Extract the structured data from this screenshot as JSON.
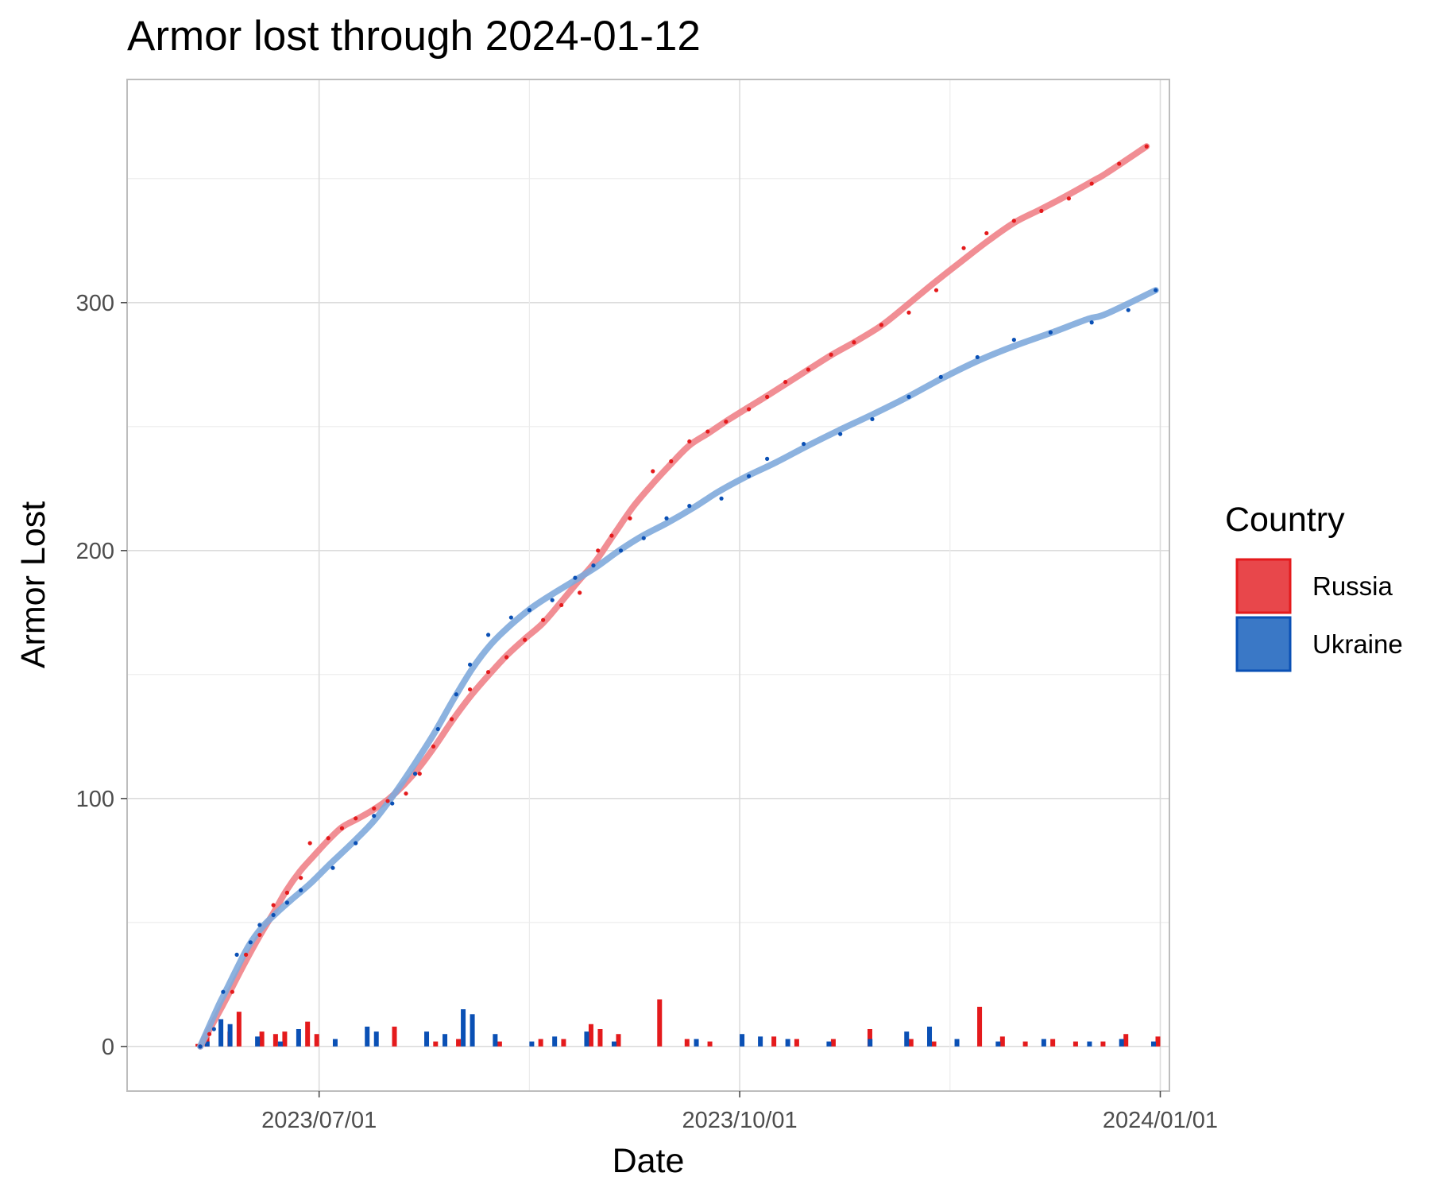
{
  "chart_data": {
    "type": "line",
    "title": "Armor lost through 2024-01-12",
    "xlabel": "Date",
    "ylabel": "Armor Lost",
    "x_ticks": [
      "2023/07/01",
      "2023/10/01",
      "2024/01/01"
    ],
    "y_ticks": [
      0,
      100,
      200,
      300
    ],
    "ylim": [
      -18,
      390
    ],
    "xlim": [
      "2023-05-20",
      "2024-01-03"
    ],
    "grid": true,
    "legend": {
      "title": "Country",
      "position": "right",
      "entries": [
        {
          "label": "Russia",
          "color": "#e41a1c"
        },
        {
          "label": "Ukraine",
          "color": "#0a50b5"
        }
      ]
    },
    "series": [
      {
        "name": "Russia",
        "color": "#e41a1c",
        "fill": "#e8474b",
        "trend_color": "#ef8288",
        "cumulative": [
          [
            "2023-06-05",
            0
          ],
          [
            "2023-06-07",
            5
          ],
          [
            "2023-06-12",
            22
          ],
          [
            "2023-06-15",
            37
          ],
          [
            "2023-06-18",
            45
          ],
          [
            "2023-06-21",
            57
          ],
          [
            "2023-06-24",
            62
          ],
          [
            "2023-06-27",
            68
          ],
          [
            "2023-06-29",
            82
          ],
          [
            "2023-07-03",
            84
          ],
          [
            "2023-07-06",
            88
          ],
          [
            "2023-07-09",
            92
          ],
          [
            "2023-07-13",
            96
          ],
          [
            "2023-07-16",
            99
          ],
          [
            "2023-07-20",
            102
          ],
          [
            "2023-07-23",
            110
          ],
          [
            "2023-07-26",
            121
          ],
          [
            "2023-07-30",
            132
          ],
          [
            "2023-08-03",
            144
          ],
          [
            "2023-08-07",
            151
          ],
          [
            "2023-08-11",
            157
          ],
          [
            "2023-08-15",
            164
          ],
          [
            "2023-08-19",
            172
          ],
          [
            "2023-08-23",
            178
          ],
          [
            "2023-08-27",
            183
          ],
          [
            "2023-08-31",
            200
          ],
          [
            "2023-09-03",
            206
          ],
          [
            "2023-09-07",
            213
          ],
          [
            "2023-09-12",
            232
          ],
          [
            "2023-09-16",
            236
          ],
          [
            "2023-09-20",
            244
          ],
          [
            "2023-09-24",
            248
          ],
          [
            "2023-09-28",
            252
          ],
          [
            "2023-10-03",
            257
          ],
          [
            "2023-10-07",
            262
          ],
          [
            "2023-10-11",
            268
          ],
          [
            "2023-10-16",
            273
          ],
          [
            "2023-10-21",
            279
          ],
          [
            "2023-10-26",
            284
          ],
          [
            "2023-11-01",
            291
          ],
          [
            "2023-11-07",
            296
          ],
          [
            "2023-11-13",
            305
          ],
          [
            "2023-11-19",
            322
          ],
          [
            "2023-11-24",
            328
          ],
          [
            "2023-11-30",
            333
          ],
          [
            "2023-12-06",
            337
          ],
          [
            "2023-12-12",
            342
          ],
          [
            "2023-12-17",
            348
          ],
          [
            "2023-12-23",
            356
          ],
          [
            "2023-12-29",
            363
          ]
        ],
        "daily": [
          [
            "2023-06-05",
            1
          ],
          [
            "2023-06-07",
            4
          ],
          [
            "2023-06-12",
            6
          ],
          [
            "2023-06-14",
            14
          ],
          [
            "2023-06-19",
            6
          ],
          [
            "2023-06-22",
            5
          ],
          [
            "2023-06-24",
            6
          ],
          [
            "2023-06-29",
            10
          ],
          [
            "2023-07-01",
            5
          ],
          [
            "2023-07-18",
            8
          ],
          [
            "2023-07-27",
            2
          ],
          [
            "2023-08-01",
            3
          ],
          [
            "2023-08-10",
            2
          ],
          [
            "2023-08-19",
            3
          ],
          [
            "2023-08-24",
            3
          ],
          [
            "2023-08-30",
            9
          ],
          [
            "2023-09-01",
            7
          ],
          [
            "2023-09-05",
            5
          ],
          [
            "2023-09-14",
            19
          ],
          [
            "2023-09-20",
            3
          ],
          [
            "2023-09-25",
            2
          ],
          [
            "2023-10-09",
            4
          ],
          [
            "2023-10-14",
            3
          ],
          [
            "2023-10-22",
            3
          ],
          [
            "2023-10-30",
            7
          ],
          [
            "2023-11-08",
            3
          ],
          [
            "2023-11-13",
            2
          ],
          [
            "2023-11-23",
            16
          ],
          [
            "2023-11-28",
            4
          ],
          [
            "2023-12-03",
            2
          ],
          [
            "2023-12-09",
            3
          ],
          [
            "2023-12-14",
            2
          ],
          [
            "2023-12-20",
            2
          ],
          [
            "2023-12-25",
            5
          ],
          [
            "2024-01-01",
            4
          ]
        ]
      },
      {
        "name": "Ukraine",
        "color": "#0a50b5",
        "fill": "#3a78c6",
        "trend_color": "#7faadc",
        "cumulative": [
          [
            "2023-06-05",
            0
          ],
          [
            "2023-06-08",
            7
          ],
          [
            "2023-06-10",
            22
          ],
          [
            "2023-06-13",
            37
          ],
          [
            "2023-06-16",
            42
          ],
          [
            "2023-06-18",
            49
          ],
          [
            "2023-06-21",
            53
          ],
          [
            "2023-06-24",
            58
          ],
          [
            "2023-06-27",
            63
          ],
          [
            "2023-07-04",
            72
          ],
          [
            "2023-07-09",
            82
          ],
          [
            "2023-07-13",
            93
          ],
          [
            "2023-07-17",
            98
          ],
          [
            "2023-07-22",
            110
          ],
          [
            "2023-07-27",
            128
          ],
          [
            "2023-07-31",
            142
          ],
          [
            "2023-08-03",
            154
          ],
          [
            "2023-08-07",
            166
          ],
          [
            "2023-08-12",
            173
          ],
          [
            "2023-08-16",
            176
          ],
          [
            "2023-08-21",
            180
          ],
          [
            "2023-08-26",
            189
          ],
          [
            "2023-08-30",
            194
          ],
          [
            "2023-09-05",
            200
          ],
          [
            "2023-09-10",
            205
          ],
          [
            "2023-09-15",
            213
          ],
          [
            "2023-09-20",
            218
          ],
          [
            "2023-09-27",
            221
          ],
          [
            "2023-10-03",
            230
          ],
          [
            "2023-10-07",
            237
          ],
          [
            "2023-10-15",
            243
          ],
          [
            "2023-10-23",
            247
          ],
          [
            "2023-10-30",
            253
          ],
          [
            "2023-11-07",
            262
          ],
          [
            "2023-11-14",
            270
          ],
          [
            "2023-11-22",
            278
          ],
          [
            "2023-11-30",
            285
          ],
          [
            "2023-12-08",
            288
          ],
          [
            "2023-12-17",
            292
          ],
          [
            "2023-12-25",
            297
          ],
          [
            "2023-12-31",
            305
          ]
        ],
        "daily": [
          [
            "2023-06-06",
            2
          ],
          [
            "2023-06-09",
            11
          ],
          [
            "2023-06-11",
            9
          ],
          [
            "2023-06-17",
            4
          ],
          [
            "2023-06-22",
            2
          ],
          [
            "2023-06-26",
            7
          ],
          [
            "2023-07-04",
            3
          ],
          [
            "2023-07-11",
            8
          ],
          [
            "2023-07-13",
            6
          ],
          [
            "2023-07-24",
            6
          ],
          [
            "2023-07-28",
            5
          ],
          [
            "2023-08-01",
            15
          ],
          [
            "2023-08-03",
            13
          ],
          [
            "2023-08-08",
            5
          ],
          [
            "2023-08-16",
            2
          ],
          [
            "2023-08-21",
            4
          ],
          [
            "2023-08-28",
            6
          ],
          [
            "2023-09-03",
            2
          ],
          [
            "2023-09-21",
            3
          ],
          [
            "2023-10-01",
            5
          ],
          [
            "2023-10-05",
            4
          ],
          [
            "2023-10-11",
            3
          ],
          [
            "2023-10-20",
            2
          ],
          [
            "2023-10-29",
            3
          ],
          [
            "2023-11-06",
            6
          ],
          [
            "2023-11-11",
            8
          ],
          [
            "2023-11-17",
            3
          ],
          [
            "2023-11-26",
            2
          ],
          [
            "2023-12-06",
            3
          ],
          [
            "2023-12-16",
            2
          ],
          [
            "2023-12-23",
            3
          ],
          [
            "2023-12-30",
            2
          ]
        ]
      }
    ]
  }
}
